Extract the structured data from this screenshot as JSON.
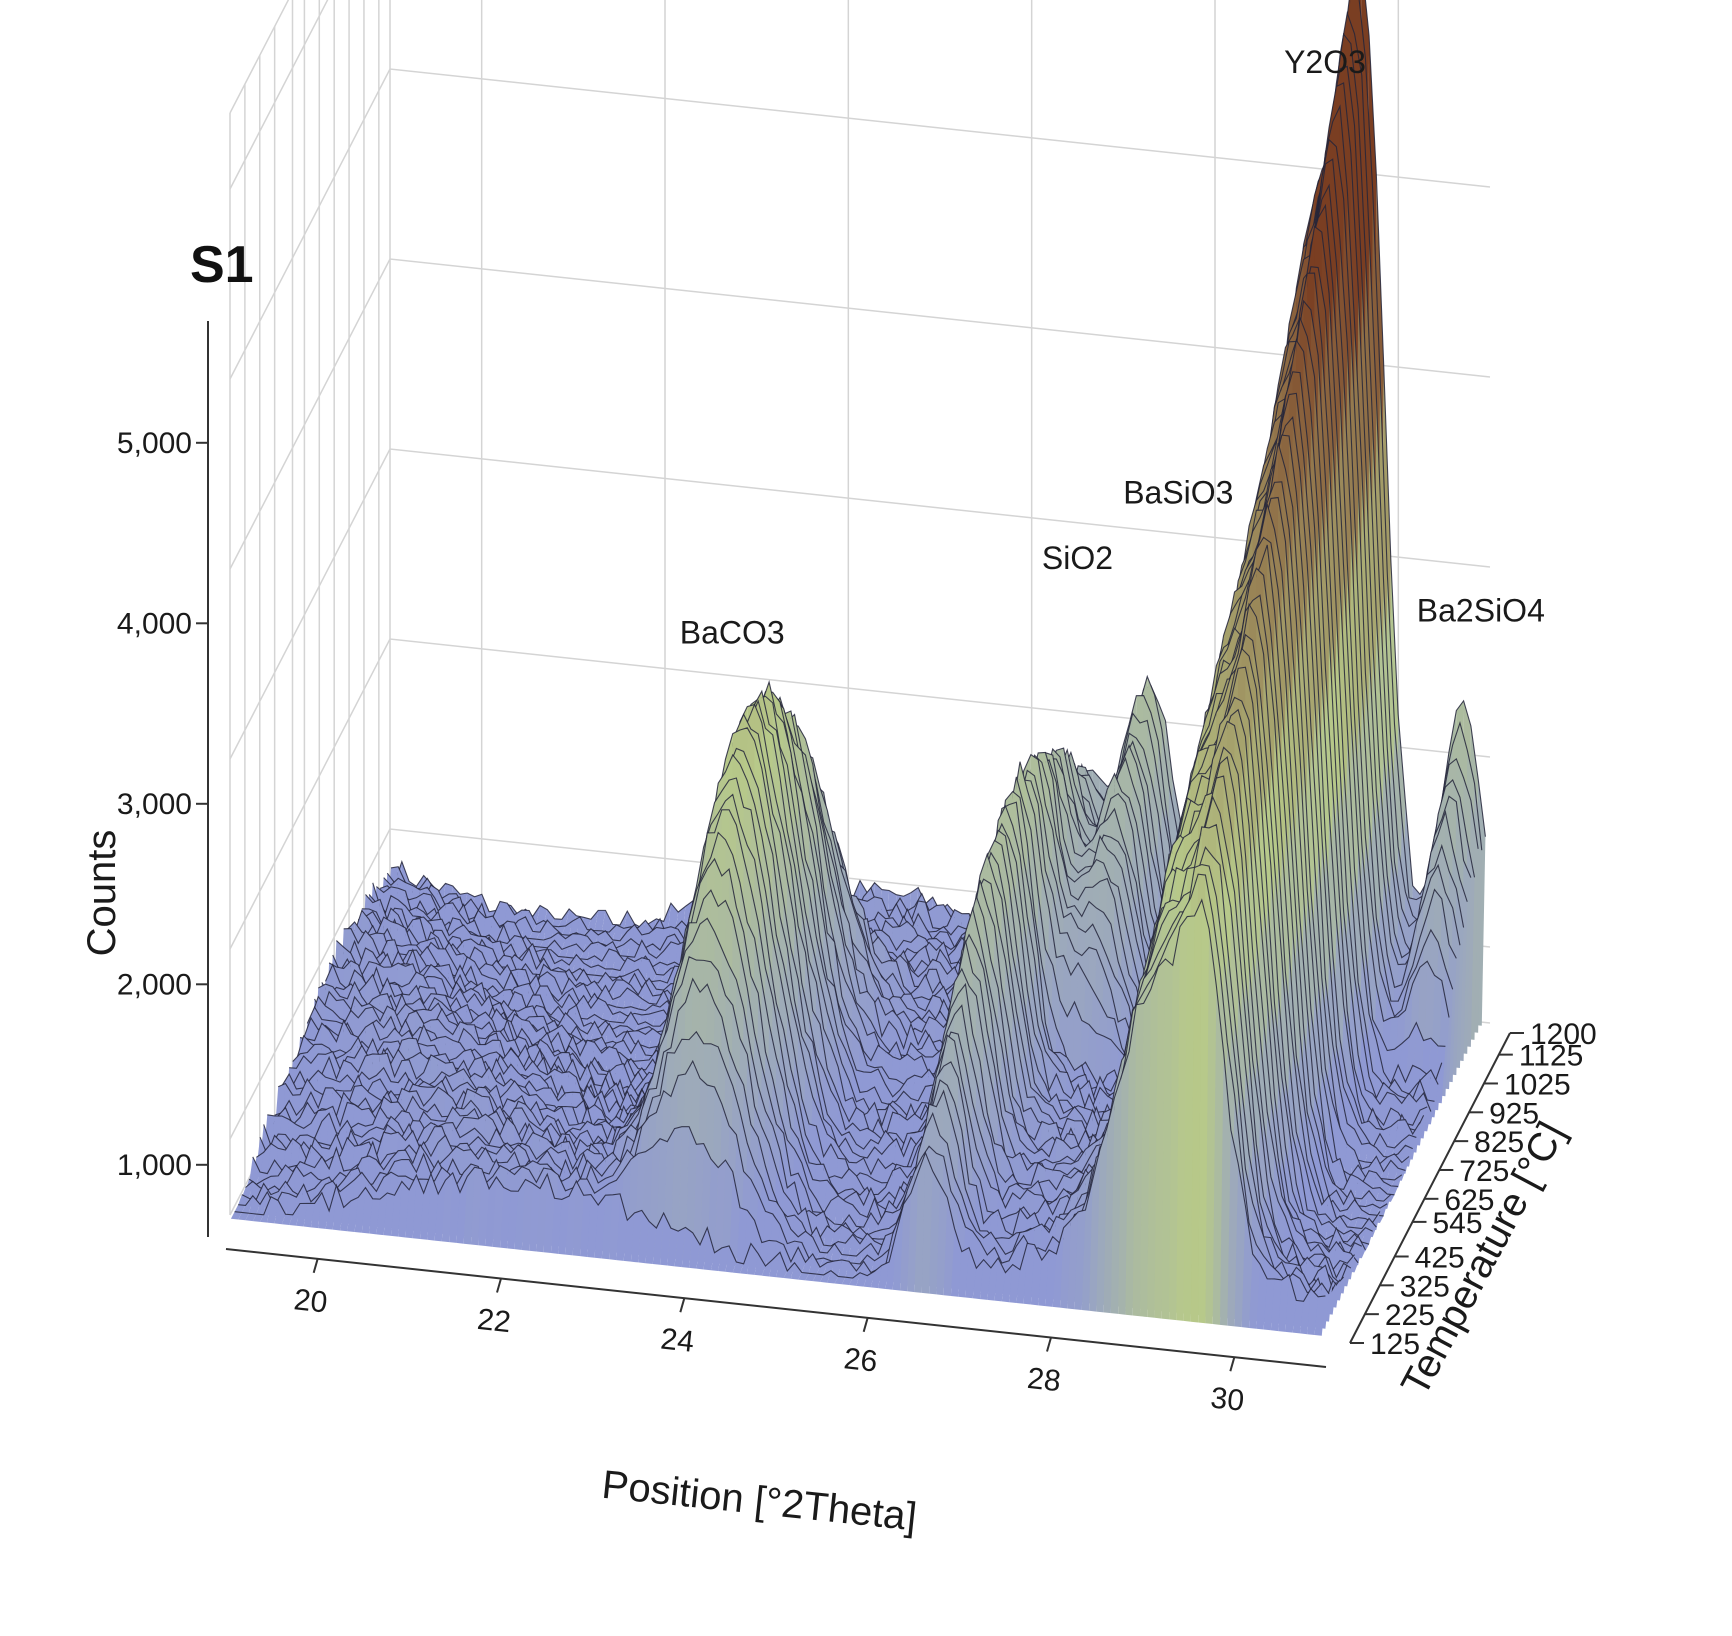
{
  "chart_data": {
    "type": "surface",
    "panel_label": "S1",
    "xlabel": "Position [°2Theta]",
    "ylabel": "Temperature [°C]",
    "zlabel": "Counts",
    "x_ticks": [
      "20",
      "22",
      "24",
      "26",
      "28",
      "30"
    ],
    "y_ticks": [
      "125",
      "225",
      "325",
      "425",
      "545",
      "625",
      "725",
      "825",
      "925",
      "1025",
      "1125",
      "1200"
    ],
    "z_ticks": [
      "1,000",
      "2,000",
      "3,000",
      "4,000",
      "5,000"
    ],
    "xlim": [
      19,
      31
    ],
    "ylim": [
      125,
      1200
    ],
    "zlim": [
      600,
      5000
    ],
    "grid": true,
    "background_level": 1000,
    "peaks": [
      {
        "label": "BaCO3",
        "position": 24.0,
        "max_counts": 3250,
        "temp_range": [
          125,
          1025
        ]
      },
      {
        "label": "SiO2",
        "position": 26.6,
        "max_counts": 2400,
        "temp_range": [
          125,
          1200
        ]
      },
      {
        "label": "BaSiO3",
        "position": 27.3,
        "max_counts": 2600,
        "temp_range": [
          725,
          1200
        ]
      },
      {
        "label": "Y2O3",
        "position": 29.1,
        "max_counts": 5000,
        "temp_range": [
          125,
          1200
        ]
      },
      {
        "label": "Ba2SiO4",
        "position": 30.7,
        "max_counts": 2300,
        "temp_range": [
          925,
          1200
        ]
      }
    ]
  },
  "colors": {
    "low": "#8f99d4",
    "mid": "#b7c98a",
    "high": "#7a3e22",
    "grid": "#d4d4d4",
    "mesh": "#23253a"
  }
}
